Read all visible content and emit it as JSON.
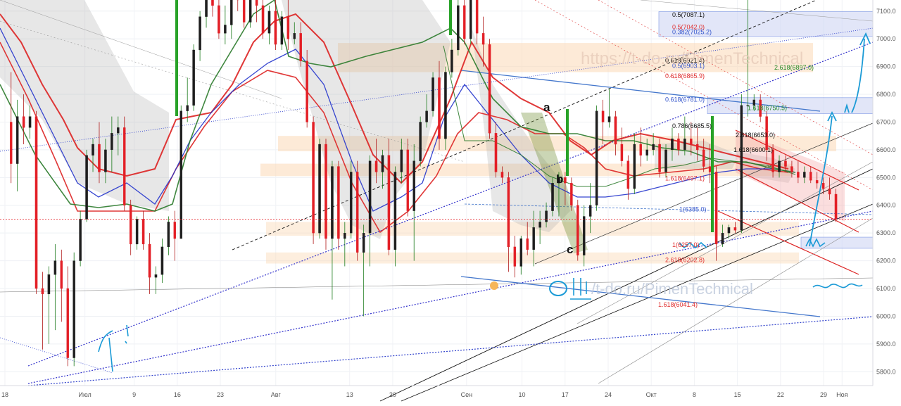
{
  "watermark": "https://t-do.ru/PimenTechnical",
  "watermark_bottom": "/t-do.ru/PimenTechnical",
  "chart_data": {
    "type": "candlestick",
    "ylim": [
      5750,
      7140
    ],
    "y_ticks": [
      5800,
      5900,
      6000,
      6100,
      6200,
      6300,
      6400,
      6500,
      6600,
      6700,
      6800,
      6900,
      7000,
      7100
    ],
    "x_ticks": [
      {
        "label": "18",
        "day": -1
      },
      {
        "label": "Июл",
        "day": 12
      },
      {
        "label": "9",
        "day": 20
      },
      {
        "label": "16",
        "day": 27
      },
      {
        "label": "23",
        "day": 34
      },
      {
        "label": "Авг",
        "day": 43
      },
      {
        "label": "13",
        "day": 55
      },
      {
        "label": "20",
        "day": 62
      },
      {
        "label": "Сен",
        "day": 74
      },
      {
        "label": "10",
        "day": 83
      },
      {
        "label": "17",
        "day": 90
      },
      {
        "label": "24",
        "day": 97
      },
      {
        "label": "Окт",
        "day": 104
      },
      {
        "label": "8",
        "day": 111
      },
      {
        "label": "15",
        "day": 118
      },
      {
        "label": "22",
        "day": 125
      },
      {
        "label": "29",
        "day": 132
      },
      {
        "label": "Ноя",
        "day": 135
      }
    ],
    "x_range_days": [
      -1.8,
      140
    ],
    "current_price": "6349.9",
    "current_value": 6349.9,
    "candles": [
      [
        6700,
        6880,
        6480,
        6550
      ],
      [
        6550,
        6780,
        6450,
        6720
      ],
      [
        6720,
        6800,
        6620,
        6680
      ],
      [
        6680,
        6760,
        6640,
        6720
      ],
      [
        6720,
        6740,
        6080,
        6100
      ],
      [
        6100,
        6160,
        5880,
        6080
      ],
      [
        6080,
        6180,
        5900,
        6150
      ],
      [
        6150,
        6260,
        5950,
        6200
      ],
      [
        6200,
        6240,
        5980,
        6100
      ],
      [
        6100,
        6180,
        5820,
        5850
      ],
      [
        5850,
        6230,
        5820,
        6200
      ],
      [
        6200,
        6380,
        6180,
        6350
      ],
      [
        6350,
        6600,
        6340,
        6580
      ],
      [
        6580,
        6640,
        6520,
        6620
      ],
      [
        6620,
        6700,
        6480,
        6520
      ],
      [
        6520,
        6640,
        6480,
        6600
      ],
      [
        6600,
        6720,
        6520,
        6660
      ],
      [
        6660,
        6720,
        6580,
        6680
      ],
      [
        6680,
        6720,
        6380,
        6400
      ],
      [
        6400,
        6420,
        6220,
        6260
      ],
      [
        6260,
        6360,
        6240,
        6350
      ],
      [
        6350,
        6380,
        6240,
        6260
      ],
      [
        6260,
        6300,
        6080,
        6140
      ],
      [
        6140,
        6180,
        6080,
        6150
      ],
      [
        6150,
        6280,
        6120,
        6250
      ],
      [
        6250,
        6360,
        6220,
        6340
      ],
      [
        6340,
        6380,
        6200,
        6280
      ],
      [
        6280,
        6760,
        6280,
        6740
      ],
      [
        6740,
        6860,
        6700,
        6760
      ],
      [
        6760,
        6980,
        6740,
        6960
      ],
      [
        6960,
        7100,
        6920,
        7080
      ],
      [
        7080,
        7200,
        7040,
        7140
      ],
      [
        7140,
        7200,
        7080,
        7120
      ],
      [
        7120,
        7180,
        7000,
        7020
      ],
      [
        7020,
        7120,
        6980,
        7050
      ],
      [
        7050,
        7200,
        7000,
        7150
      ],
      [
        7150,
        7200,
        7100,
        7140
      ],
      [
        7140,
        7180,
        7040,
        7060
      ],
      [
        7060,
        7200,
        7040,
        7150
      ],
      [
        7150,
        7200,
        7060,
        7120
      ],
      [
        7120,
        7160,
        7000,
        7020
      ],
      [
        7020,
        7120,
        6980,
        7100
      ],
      [
        7100,
        7140,
        6960,
        6980
      ],
      [
        6980,
        7100,
        6960,
        7080
      ],
      [
        7080,
        7140,
        6960,
        7000
      ],
      [
        7000,
        7060,
        6980,
        7020
      ],
      [
        7020,
        7060,
        6900,
        6920
      ],
      [
        6920,
        6960,
        6680,
        6700
      ],
      [
        6700,
        6720,
        6260,
        6300
      ],
      [
        6300,
        6640,
        6280,
        6620
      ],
      [
        6620,
        6640,
        6240,
        6280
      ],
      [
        6280,
        6560,
        6060,
        6540
      ],
      [
        6540,
        6560,
        6240,
        6280
      ],
      [
        6280,
        6340,
        6180,
        6300
      ],
      [
        6300,
        6560,
        6280,
        6520
      ],
      [
        6520,
        6560,
        6200,
        6230
      ],
      [
        6230,
        6330,
        6000,
        6300
      ],
      [
        6300,
        6580,
        6180,
        6560
      ],
      [
        6560,
        6640,
        6480,
        6520
      ],
      [
        6520,
        6600,
        6460,
        6580
      ],
      [
        6580,
        6640,
        6220,
        6240
      ],
      [
        6240,
        6540,
        6180,
        6520
      ],
      [
        6520,
        6640,
        6480,
        6600
      ],
      [
        6600,
        6640,
        6360,
        6380
      ],
      [
        6380,
        6620,
        6200,
        6560
      ],
      [
        6560,
        6720,
        6540,
        6700
      ],
      [
        6700,
        6800,
        6680,
        6740
      ],
      [
        6740,
        6880,
        6720,
        6860
      ],
      [
        6860,
        6920,
        6600,
        6640
      ],
      [
        6640,
        6900,
        6600,
        6880
      ],
      [
        6880,
        7000,
        6860,
        6960
      ],
      [
        6960,
        7200,
        6940,
        7120
      ],
      [
        7120,
        7140,
        6980,
        7000
      ],
      [
        7000,
        7200,
        6980,
        7140
      ],
      [
        7140,
        7200,
        6980,
        7020
      ],
      [
        7020,
        7080,
        6900,
        6980
      ],
      [
        6980,
        7000,
        6640,
        6660
      ],
      [
        6660,
        6700,
        6500,
        6520
      ],
      [
        6520,
        6540,
        6480,
        6500
      ],
      [
        6500,
        6520,
        6160,
        6250
      ],
      [
        6250,
        6290,
        6140,
        6180
      ],
      [
        6180,
        6290,
        6150,
        6280
      ],
      [
        6280,
        6340,
        6220,
        6240
      ],
      [
        6240,
        6380,
        6180,
        6320
      ],
      [
        6320,
        6380,
        6260,
        6340
      ],
      [
        6340,
        6410,
        6320,
        6380
      ],
      [
        6380,
        6500,
        6360,
        6480
      ],
      [
        6480,
        6520,
        6360,
        6500
      ],
      [
        6500,
        6520,
        6400,
        6480
      ],
      [
        6480,
        6500,
        6380,
        6400
      ],
      [
        6400,
        6420,
        6200,
        6220
      ],
      [
        6220,
        6400,
        6180,
        6360
      ],
      [
        6360,
        6480,
        6300,
        6400
      ],
      [
        6400,
        6760,
        6380,
        6740
      ],
      [
        6740,
        6780,
        6620,
        6700
      ],
      [
        6700,
        6820,
        6680,
        6720
      ],
      [
        6720,
        6740,
        6580,
        6620
      ],
      [
        6620,
        6680,
        6540,
        6560
      ],
      [
        6560,
        6580,
        6420,
        6460
      ],
      [
        6460,
        6660,
        6440,
        6620
      ],
      [
        6620,
        6680,
        6540,
        6580
      ],
      [
        6580,
        6640,
        6560,
        6600
      ],
      [
        6600,
        6660,
        6580,
        6620
      ],
      [
        6620,
        6640,
        6500,
        6520
      ],
      [
        6520,
        6620,
        6500,
        6600
      ],
      [
        6600,
        6680,
        6560,
        6640
      ],
      [
        6640,
        6660,
        6580,
        6600
      ],
      [
        6600,
        6720,
        6580,
        6640
      ],
      [
        6640,
        6700,
        6580,
        6620
      ],
      [
        6620,
        6680,
        6560,
        6600
      ],
      [
        6600,
        6640,
        6520,
        6540
      ],
      [
        6540,
        6620,
        6480,
        6520
      ],
      [
        6520,
        6540,
        6200,
        6260
      ],
      [
        6260,
        6330,
        6250,
        6300
      ],
      [
        6300,
        6330,
        6280,
        6320
      ],
      [
        6320,
        6340,
        6300,
        6310
      ],
      [
        6310,
        6800,
        6300,
        6760
      ],
      [
        6760,
        7140,
        6720,
        6760
      ],
      [
        6760,
        6800,
        6740,
        6780
      ],
      [
        6780,
        6800,
        6700,
        6720
      ],
      [
        6720,
        6740,
        6560,
        6600
      ],
      [
        6600,
        6620,
        6500,
        6520
      ],
      [
        6520,
        6580,
        6500,
        6560
      ],
      [
        6560,
        6580,
        6520,
        6540
      ],
      [
        6540,
        6560,
        6500,
        6520
      ],
      [
        6520,
        6560,
        6480,
        6500
      ],
      [
        6500,
        6540,
        6480,
        6520
      ],
      [
        6520,
        6540,
        6480,
        6490
      ],
      [
        6490,
        6520,
        6460,
        6480
      ],
      [
        6480,
        6500,
        6440,
        6460
      ],
      [
        6460,
        6500,
        6420,
        6440
      ],
      [
        6440,
        6460,
        6340,
        6350
      ]
    ],
    "fib_labels": [
      {
        "text": "0.5(7087.1)",
        "value": 7087.1,
        "color": "#111111"
      },
      {
        "text": "0.5(7042.0)",
        "value": 7042.0,
        "color": "#e03030"
      },
      {
        "text": "0.382(7025.2)",
        "value": 7025.2,
        "color": "#3355cc"
      },
      {
        "text": "0.618(6921.4)",
        "value": 6921.4,
        "color": "#111111"
      },
      {
        "text": "0.5(6903.1)",
        "value": 6903.1,
        "color": "#3355cc"
      },
      {
        "text": "2.618(6897.0)",
        "value": 6897.0,
        "color": "#2a8a2a"
      },
      {
        "text": "0.618(6865.9)",
        "value": 6865.9,
        "color": "#e03030"
      },
      {
        "text": "0.618(6781.0)",
        "value": 6781.0,
        "color": "#3355cc"
      },
      {
        "text": "1.618(6750.5)",
        "value": 6750.5,
        "color": "#2a8a2a"
      },
      {
        "text": "0.786(6685.5)",
        "value": 6685.5,
        "color": "#111111"
      },
      {
        "text": "2.618(6653.0)",
        "value": 6653.0,
        "color": "#111111"
      },
      {
        "text": "1.618(6600.1)",
        "value": 6600.1,
        "color": "#111111"
      },
      {
        "text": "1.618(6497.1)",
        "value": 6497.1,
        "color": "#e03030"
      },
      {
        "text": "1(6385.0)",
        "value": 6385.0,
        "color": "#3355cc"
      },
      {
        "text": "1(6257.0)",
        "value": 6257.0,
        "color": "#e03030"
      },
      {
        "text": "2.618(6202.8)",
        "value": 6202.8,
        "color": "#e03030"
      },
      {
        "text": "1.618(6041.4)",
        "value": 6041.4,
        "color": "#e03030"
      }
    ],
    "wave_labels": [
      "a",
      "b",
      "c"
    ]
  }
}
